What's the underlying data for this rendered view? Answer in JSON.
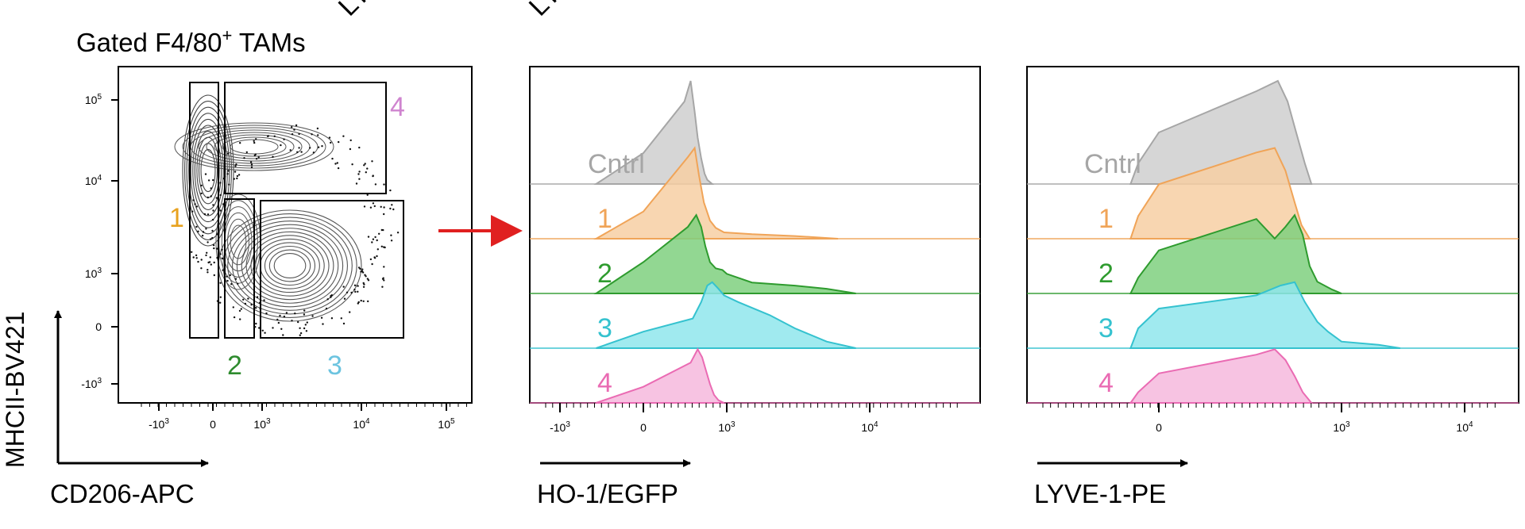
{
  "figure": {
    "top_fragment_1": "LY",
    "top_fragment_2": "LY"
  },
  "contour": {
    "title": "Gated F4/80",
    "title_sup": "+",
    "title_tail": " TAMs",
    "xlabel": "CD206-APC",
    "ylabel": "MHCII-BV421",
    "x_ticks": [
      {
        "label": "-10",
        "sup": "3",
        "v": -1000
      },
      {
        "label": "0",
        "sup": "",
        "v": 0
      },
      {
        "label": "10",
        "sup": "3",
        "v": 1000
      },
      {
        "label": "10",
        "sup": "4",
        "v": 10000
      },
      {
        "label": "10",
        "sup": "5",
        "v": 100000
      }
    ],
    "y_ticks": [
      {
        "label": "-10",
        "sup": "3",
        "v": -1000
      },
      {
        "label": "0",
        "sup": "",
        "v": 0
      },
      {
        "label": "10",
        "sup": "3",
        "v": 1000
      },
      {
        "label": "10",
        "sup": "4",
        "v": 10000
      },
      {
        "label": "10",
        "sup": "5",
        "v": 100000
      }
    ],
    "gates": [
      {
        "label": "1",
        "color": "#e8a21f"
      },
      {
        "label": "2",
        "color": "#2e8b2e"
      },
      {
        "label": "3",
        "color": "#6cc4e0"
      },
      {
        "label": "4",
        "color": "#cf84cf"
      }
    ]
  },
  "chart_data": [
    {
      "type": "area",
      "title": "",
      "xlabel": "HO-1/EGFP",
      "x_ticks": [
        {
          "label": "-10",
          "sup": "3",
          "v": -1000
        },
        {
          "label": "0",
          "sup": "",
          "v": 0
        },
        {
          "label": "10",
          "sup": "3",
          "v": 1000
        },
        {
          "label": "10",
          "sup": "4",
          "v": 10000
        }
      ],
      "series": [
        {
          "name": "Cntrl",
          "color": "#a6a6a6",
          "fill": "#cfcfcf",
          "peak": 0.04,
          "x": [
            -50,
            0,
            30,
            50,
            70,
            90,
            120,
            160,
            200,
            300
          ],
          "y": [
            0,
            0.3,
            0.8,
            1.0,
            0.7,
            0.45,
            0.25,
            0.1,
            0.04,
            0
          ]
        },
        {
          "name": "1",
          "color": "#f0a458",
          "fill": "#f7cfa3",
          "peak": 0.09,
          "x": [
            -50,
            0,
            40,
            70,
            100,
            150,
            250,
            400,
            800,
            1500,
            3000,
            6000
          ],
          "y": [
            0,
            0.3,
            0.9,
            1.0,
            0.7,
            0.4,
            0.2,
            0.12,
            0.07,
            0.05,
            0.03,
            0
          ]
        },
        {
          "name": "2",
          "color": "#2e9b2e",
          "fill": "#7fd07f",
          "peak": 0.3,
          "x": [
            -50,
            0,
            40,
            80,
            120,
            170,
            250,
            400,
            700,
            1000,
            1500,
            3000,
            5000,
            8000
          ],
          "y": [
            0,
            0.4,
            0.85,
            1.0,
            0.85,
            0.6,
            0.4,
            0.32,
            0.3,
            0.25,
            0.14,
            0.1,
            0.06,
            0
          ]
        },
        {
          "name": "3",
          "color": "#35c2cf",
          "fill": "#8fe6ec",
          "peak": 0.55,
          "x": [
            -50,
            0,
            60,
            120,
            200,
            300,
            500,
            800,
            1200,
            2000,
            3000,
            5000,
            8000
          ],
          "y": [
            0,
            0.25,
            0.45,
            0.7,
            0.95,
            1.0,
            0.9,
            0.8,
            0.7,
            0.5,
            0.3,
            0.1,
            0
          ]
        },
        {
          "name": "4",
          "color": "#ea6bb3",
          "fill": "#f6b8dd",
          "peak": 0.63,
          "x": [
            -50,
            0,
            50,
            90,
            130,
            180,
            250,
            350,
            500,
            800
          ],
          "y": [
            0,
            0.3,
            0.75,
            1.0,
            0.85,
            0.6,
            0.35,
            0.15,
            0.05,
            0
          ]
        }
      ]
    },
    {
      "type": "area",
      "title": "",
      "xlabel": "LYVE-1-PE",
      "x_ticks": [
        {
          "label": "0",
          "sup": "",
          "v": 0
        },
        {
          "label": "10",
          "sup": "3",
          "v": 1000
        },
        {
          "label": "10",
          "sup": "4",
          "v": 10000
        }
      ],
      "series": [
        {
          "name": "Cntrl",
          "color": "#a6a6a6",
          "fill": "#cfcfcf",
          "peak": 0.54,
          "x": [
            -60,
            -20,
            0,
            40,
            90,
            130,
            180,
            250,
            320
          ],
          "y": [
            0,
            0.2,
            0.5,
            0.9,
            1.0,
            0.8,
            0.5,
            0.2,
            0
          ]
        },
        {
          "name": "1",
          "color": "#f0a458",
          "fill": "#f7cfa3",
          "peak": 0.48,
          "x": [
            -60,
            -20,
            0,
            40,
            80,
            120,
            170,
            220,
            300
          ],
          "y": [
            0,
            0.25,
            0.6,
            0.95,
            1.0,
            0.75,
            0.4,
            0.15,
            0
          ]
        },
        {
          "name": "2",
          "color": "#2e9b2e",
          "fill": "#7fd07f",
          "peak": 0.47,
          "x": [
            -60,
            -20,
            0,
            40,
            80,
            120,
            170,
            230,
            300,
            400,
            700,
            1000
          ],
          "y": [
            0,
            0.2,
            0.55,
            0.95,
            0.7,
            0.85,
            1.0,
            0.75,
            0.35,
            0.15,
            0.05,
            0
          ]
        },
        {
          "name": "3",
          "color": "#35c2cf",
          "fill": "#8fe6ec",
          "peak": 0.53,
          "x": [
            -60,
            -20,
            0,
            40,
            100,
            170,
            250,
            400,
            600,
            1000,
            2000,
            3000
          ],
          "y": [
            0,
            0.3,
            0.6,
            0.8,
            0.95,
            1.0,
            0.7,
            0.4,
            0.25,
            0.1,
            0.05,
            0
          ]
        },
        {
          "name": "4",
          "color": "#ea6bb3",
          "fill": "#f6b8dd",
          "peak": 0.48,
          "x": [
            -60,
            -20,
            0,
            40,
            80,
            120,
            170,
            230,
            320
          ],
          "y": [
            0,
            0.2,
            0.55,
            0.9,
            1.0,
            0.8,
            0.5,
            0.2,
            0
          ]
        }
      ]
    }
  ]
}
